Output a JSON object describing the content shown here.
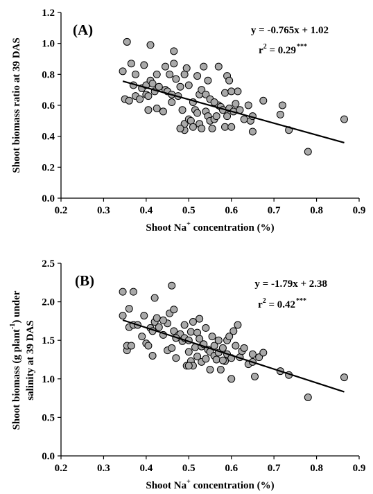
{
  "chart_data": [
    {
      "type": "scatter",
      "panel_label": "(A)",
      "xlabel": {
        "pre": "Shoot Na",
        "sup": "+",
        "post": " concentration (%)"
      },
      "ylabel": {
        "line1": "Shoot biomass ratio at 39 DAS"
      },
      "xlim": [
        0.2,
        0.9
      ],
      "ylim": [
        0.0,
        1.2
      ],
      "xticks": [
        "0.2",
        "0.3",
        "0.4",
        "0.5",
        "0.6",
        "0.7",
        "0.8",
        "0.9"
      ],
      "yticks": [
        "0.0",
        "0.2",
        "0.4",
        "0.6",
        "0.8",
        "1.0",
        "1.2"
      ],
      "equation": "y = -0.765x + 1.02",
      "r2": {
        "label": "r",
        "sup": "2",
        "value": " = 0.29",
        "sig": "***"
      },
      "regression": {
        "slope": -0.765,
        "intercept": 1.02,
        "x_range": [
          0.345,
          0.865
        ]
      },
      "marker_color": "#a9a9a9",
      "points": [
        [
          0.345,
          0.82
        ],
        [
          0.35,
          0.64
        ],
        [
          0.355,
          1.01
        ],
        [
          0.36,
          0.63
        ],
        [
          0.365,
          0.87
        ],
        [
          0.37,
          0.73
        ],
        [
          0.375,
          0.66
        ],
        [
          0.375,
          0.8
        ],
        [
          0.385,
          0.64
        ],
        [
          0.39,
          0.71
        ],
        [
          0.395,
          0.86
        ],
        [
          0.4,
          0.67
        ],
        [
          0.4,
          0.73
        ],
        [
          0.405,
          0.66
        ],
        [
          0.405,
          0.57
        ],
        [
          0.41,
          0.99
        ],
        [
          0.41,
          0.76
        ],
        [
          0.415,
          0.74
        ],
        [
          0.42,
          0.69
        ],
        [
          0.425,
          0.8
        ],
        [
          0.425,
          0.58
        ],
        [
          0.43,
          0.72
        ],
        [
          0.44,
          0.56
        ],
        [
          0.445,
          0.7
        ],
        [
          0.445,
          0.85
        ],
        [
          0.45,
          0.69
        ],
        [
          0.455,
          0.8
        ],
        [
          0.46,
          0.62
        ],
        [
          0.46,
          0.67
        ],
        [
          0.465,
          0.95
        ],
        [
          0.465,
          0.87
        ],
        [
          0.47,
          0.77
        ],
        [
          0.475,
          0.66
        ],
        [
          0.48,
          0.72
        ],
        [
          0.485,
          0.57
        ],
        [
          0.49,
          0.8
        ],
        [
          0.49,
          0.44
        ],
        [
          0.49,
          0.48
        ],
        [
          0.495,
          0.84
        ],
        [
          0.5,
          0.73
        ],
        [
          0.5,
          0.51
        ],
        [
          0.505,
          0.5
        ],
        [
          0.51,
          0.46
        ],
        [
          0.51,
          0.62
        ],
        [
          0.515,
          0.57
        ],
        [
          0.52,
          0.55
        ],
        [
          0.52,
          0.79
        ],
        [
          0.525,
          0.48
        ],
        [
          0.525,
          0.67
        ],
        [
          0.53,
          0.45
        ],
        [
          0.53,
          0.7
        ],
        [
          0.535,
          0.85
        ],
        [
          0.54,
          0.56
        ],
        [
          0.54,
          0.67
        ],
        [
          0.545,
          0.53
        ],
        [
          0.545,
          0.76
        ],
        [
          0.55,
          0.5
        ],
        [
          0.55,
          0.64
        ],
        [
          0.555,
          0.45
        ],
        [
          0.56,
          0.51
        ],
        [
          0.565,
          0.53
        ],
        [
          0.57,
          0.85
        ],
        [
          0.57,
          0.6
        ],
        [
          0.575,
          0.59
        ],
        [
          0.58,
          0.57
        ],
        [
          0.585,
          0.46
        ],
        [
          0.585,
          0.68
        ],
        [
          0.59,
          0.79
        ],
        [
          0.59,
          0.53
        ],
        [
          0.595,
          0.76
        ],
        [
          0.595,
          0.58
        ],
        [
          0.6,
          0.46
        ],
        [
          0.605,
          0.56
        ],
        [
          0.61,
          0.61
        ],
        [
          0.615,
          0.69
        ],
        [
          0.62,
          0.57
        ],
        [
          0.63,
          0.51
        ],
        [
          0.64,
          0.6
        ],
        [
          0.645,
          0.5
        ],
        [
          0.65,
          0.43
        ],
        [
          0.65,
          0.53
        ],
        [
          0.675,
          0.63
        ],
        [
          0.715,
          0.54
        ],
        [
          0.72,
          0.6
        ],
        [
          0.735,
          0.44
        ],
        [
          0.78,
          0.3
        ],
        [
          0.865,
          0.51
        ],
        [
          0.48,
          0.45
        ],
        [
          0.56,
          0.62
        ],
        [
          0.6,
          0.69
        ]
      ]
    },
    {
      "type": "scatter",
      "panel_label": "(B)",
      "xlabel": {
        "pre": "Shoot Na",
        "sup": "+",
        "post": " concentration (%)"
      },
      "ylabel": {
        "line1": "Shoot biomass (g plant",
        "sup": "-1",
        "line1_end": ") under",
        "line2": "salinity at 39 DAS"
      },
      "xlim": [
        0.2,
        0.9
      ],
      "ylim": [
        0.0,
        2.5
      ],
      "xticks": [
        "0.2",
        "0.3",
        "0.4",
        "0.5",
        "0.6",
        "0.7",
        "0.8",
        "0.9"
      ],
      "yticks": [
        "0.0",
        "0.5",
        "1.0",
        "1.5",
        "2.0",
        "2.5"
      ],
      "equation": "y = -1.79x + 2.38",
      "r2": {
        "label": "r",
        "sup": "2",
        "value": " = 0.42",
        "sig": "***"
      },
      "regression": {
        "slope": -1.79,
        "intercept": 2.38,
        "x_range": [
          0.345,
          0.865
        ]
      },
      "marker_color": "#a9a9a9",
      "points": [
        [
          0.345,
          2.13
        ],
        [
          0.345,
          1.82
        ],
        [
          0.355,
          1.37
        ],
        [
          0.355,
          1.43
        ],
        [
          0.36,
          1.67
        ],
        [
          0.36,
          1.91
        ],
        [
          0.365,
          1.43
        ],
        [
          0.37,
          2.13
        ],
        [
          0.37,
          1.7
        ],
        [
          0.39,
          1.55
        ],
        [
          0.395,
          1.82
        ],
        [
          0.4,
          1.46
        ],
        [
          0.405,
          1.43
        ],
        [
          0.41,
          1.66
        ],
        [
          0.415,
          1.3
        ],
        [
          0.415,
          1.62
        ],
        [
          0.42,
          2.05
        ],
        [
          0.42,
          1.74
        ],
        [
          0.425,
          1.79
        ],
        [
          0.43,
          1.67
        ],
        [
          0.44,
          1.57
        ],
        [
          0.45,
          1.37
        ],
        [
          0.45,
          1.72
        ],
        [
          0.455,
          1.85
        ],
        [
          0.46,
          2.21
        ],
        [
          0.46,
          1.4
        ],
        [
          0.465,
          1.62
        ],
        [
          0.465,
          1.9
        ],
        [
          0.47,
          1.27
        ],
        [
          0.475,
          1.56
        ],
        [
          0.48,
          1.58
        ],
        [
          0.485,
          1.49
        ],
        [
          0.49,
          1.7
        ],
        [
          0.49,
          1.53
        ],
        [
          0.495,
          1.17
        ],
        [
          0.5,
          1.35
        ],
        [
          0.5,
          1.5
        ],
        [
          0.505,
          1.23
        ],
        [
          0.505,
          1.61
        ],
        [
          0.51,
          1.17
        ],
        [
          0.51,
          1.74
        ],
        [
          0.515,
          1.41
        ],
        [
          0.52,
          1.6
        ],
        [
          0.52,
          1.29
        ],
        [
          0.525,
          1.78
        ],
        [
          0.525,
          1.52
        ],
        [
          0.53,
          1.42
        ],
        [
          0.53,
          1.22
        ],
        [
          0.535,
          1.45
        ],
        [
          0.54,
          1.66
        ],
        [
          0.54,
          1.26
        ],
        [
          0.545,
          1.38
        ],
        [
          0.55,
          1.35
        ],
        [
          0.55,
          1.12
        ],
        [
          0.555,
          1.55
        ],
        [
          0.56,
          1.43
        ],
        [
          0.56,
          1.3
        ],
        [
          0.565,
          1.25
        ],
        [
          0.57,
          1.5
        ],
        [
          0.57,
          1.34
        ],
        [
          0.575,
          1.12
        ],
        [
          0.58,
          1.4
        ],
        [
          0.585,
          1.23
        ],
        [
          0.59,
          1.5
        ],
        [
          0.59,
          1.32
        ],
        [
          0.595,
          1.55
        ],
        [
          0.6,
          1.0
        ],
        [
          0.6,
          1.27
        ],
        [
          0.605,
          1.62
        ],
        [
          0.61,
          1.43
        ],
        [
          0.615,
          1.7
        ],
        [
          0.62,
          1.28
        ],
        [
          0.625,
          1.36
        ],
        [
          0.63,
          1.4
        ],
        [
          0.64,
          1.19
        ],
        [
          0.65,
          1.22
        ],
        [
          0.65,
          1.32
        ],
        [
          0.655,
          1.03
        ],
        [
          0.665,
          1.28
        ],
        [
          0.675,
          1.34
        ],
        [
          0.715,
          1.1
        ],
        [
          0.735,
          1.05
        ],
        [
          0.78,
          0.76
        ],
        [
          0.865,
          1.02
        ],
        [
          0.5,
          1.17
        ],
        [
          0.58,
          1.24
        ],
        [
          0.47,
          1.53
        ],
        [
          0.38,
          1.7
        ],
        [
          0.44,
          1.76
        ]
      ]
    }
  ]
}
